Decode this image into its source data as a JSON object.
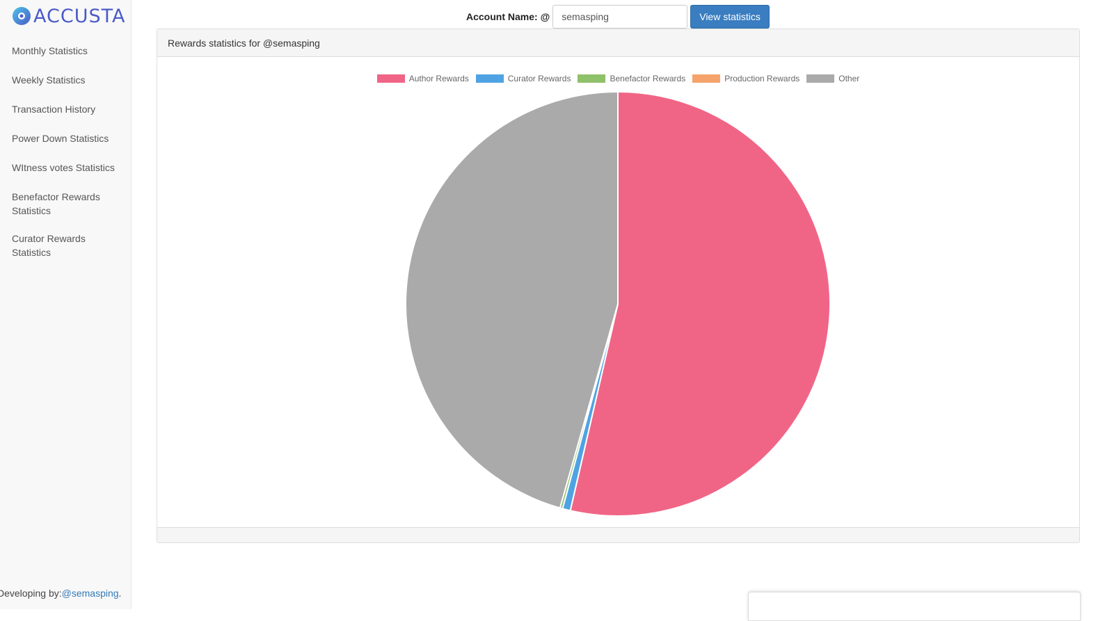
{
  "brand": {
    "name": "ACCUSTA",
    "accent": "#4a5bc8"
  },
  "sidebar": {
    "items": [
      {
        "label": "Monthly Statistics"
      },
      {
        "label": "Weekly Statistics"
      },
      {
        "label": "Transaction History"
      },
      {
        "label": "Power Down Statistics"
      },
      {
        "label": "WItness votes Statistics"
      },
      {
        "label": "Benefactor Rewards Statistics"
      },
      {
        "label": "Curator Rewards Statistics"
      }
    ],
    "footer_prefix": "Developing by:",
    "footer_link": "@semasping",
    "footer_suffix": "."
  },
  "header": {
    "account_label": "Account Name: @",
    "account_value": "semasping",
    "button_label": "View statistics"
  },
  "panel": {
    "title": "Rewards statistics for @semasping"
  },
  "chart_data": {
    "type": "pie",
    "title": "",
    "legend_position": "top",
    "labels": [
      "Author Rewards",
      "Curator Rewards",
      "Benefactor Rewards",
      "Production Rewards",
      "Other"
    ],
    "values": [
      53.6,
      0.6,
      0.2,
      0,
      45.6
    ],
    "colors": [
      "#f06586",
      "#4fa3e3",
      "#8fc06a",
      "#f5a36b",
      "#aaaaaa"
    ]
  }
}
